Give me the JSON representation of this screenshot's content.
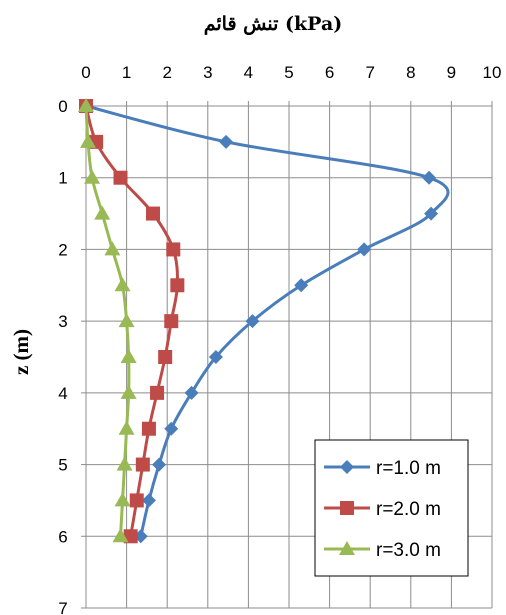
{
  "chart_data": {
    "type": "line",
    "title": "تنش قائم (kPa)",
    "xlabel": "تنش قائم (kPa)",
    "ylabel": "z (m)",
    "x_axis_position": "top",
    "y_axis_inverted": true,
    "xlim": [
      0,
      10
    ],
    "ylim": [
      0,
      7
    ],
    "xticks": [
      "0",
      "1",
      "2",
      "3",
      "4",
      "5",
      "6",
      "7",
      "8",
      "9",
      "10"
    ],
    "yticks": [
      "0",
      "1",
      "2",
      "3",
      "4",
      "5",
      "6",
      "7"
    ],
    "grid": true,
    "legend_position": "bottom-right",
    "series": [
      {
        "name": "r=1.0 m",
        "color": "#4a7ebb",
        "marker": "diamond",
        "points": [
          [
            0,
            0
          ],
          [
            3.45,
            0.5
          ],
          [
            8.45,
            1.0
          ],
          [
            8.5,
            1.5
          ],
          [
            6.85,
            2.0
          ],
          [
            5.3,
            2.5
          ],
          [
            4.1,
            3.0
          ],
          [
            3.2,
            3.5
          ],
          [
            2.6,
            4.0
          ],
          [
            2.1,
            4.5
          ],
          [
            1.8,
            5.0
          ],
          [
            1.55,
            5.5
          ],
          [
            1.35,
            6.0
          ]
        ]
      },
      {
        "name": "r=2.0 m",
        "color": "#be4b48",
        "marker": "square",
        "points": [
          [
            0,
            0
          ],
          [
            0.25,
            0.5
          ],
          [
            0.85,
            1.0
          ],
          [
            1.65,
            1.5
          ],
          [
            2.15,
            2.0
          ],
          [
            2.25,
            2.5
          ],
          [
            2.1,
            3.0
          ],
          [
            1.95,
            3.5
          ],
          [
            1.75,
            4.0
          ],
          [
            1.55,
            4.5
          ],
          [
            1.4,
            5.0
          ],
          [
            1.25,
            5.5
          ],
          [
            1.1,
            6.0
          ]
        ]
      },
      {
        "name": "r=3.0 m",
        "color": "#98b954",
        "marker": "triangle",
        "points": [
          [
            0,
            0
          ],
          [
            0.05,
            0.5
          ],
          [
            0.15,
            1.0
          ],
          [
            0.4,
            1.5
          ],
          [
            0.65,
            2.0
          ],
          [
            0.9,
            2.5
          ],
          [
            1.0,
            3.0
          ],
          [
            1.05,
            3.5
          ],
          [
            1.05,
            4.0
          ],
          [
            1.0,
            4.5
          ],
          [
            0.95,
            5.0
          ],
          [
            0.9,
            5.5
          ],
          [
            0.85,
            6.0
          ]
        ]
      }
    ]
  }
}
